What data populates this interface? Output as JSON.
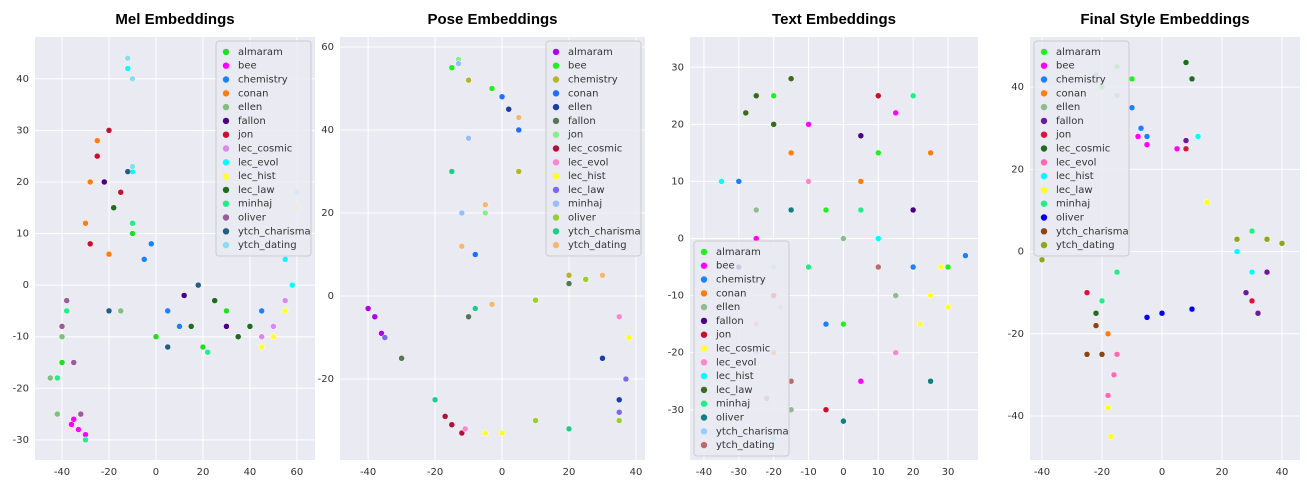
{
  "chart_data": [
    {
      "type": "scatter",
      "title": "Mel Embeddings",
      "xlim": [
        -51.5,
        67.7
      ],
      "ylim": [
        -33.9,
        48.1
      ],
      "xticks": [
        -40,
        -20,
        0,
        20,
        40,
        60
      ],
      "yticks": [
        -30,
        -20,
        -10,
        0,
        10,
        20,
        30,
        40
      ],
      "grid": true,
      "legend": "upper right",
      "series": [
        {
          "name": "almaram",
          "color": "#22dd22",
          "x": [
            -10,
            0,
            20,
            -40,
            30
          ],
          "y": [
            10,
            -10,
            -12,
            -15,
            -5
          ]
        },
        {
          "name": "bee",
          "color": "#ff00ff",
          "x": [
            -33,
            -30,
            -36,
            -35
          ],
          "y": [
            -28,
            -29,
            -27,
            -26
          ]
        },
        {
          "name": "chemistry",
          "color": "#1e7fff",
          "x": [
            -5,
            5,
            10,
            -2,
            45
          ],
          "y": [
            5,
            -5,
            -8,
            8,
            -5
          ]
        },
        {
          "name": "conan",
          "color": "#ff7f0e",
          "x": [
            -30,
            -20,
            -28,
            -25
          ],
          "y": [
            12,
            6,
            20,
            28
          ]
        },
        {
          "name": "ellen",
          "color": "#7fbf7f",
          "x": [
            -45,
            -40,
            -42,
            -15
          ],
          "y": [
            -18,
            -10,
            -25,
            -5
          ]
        },
        {
          "name": "fallon",
          "color": "#4b0082",
          "x": [
            -22,
            -18,
            12,
            30
          ],
          "y": [
            20,
            15,
            -2,
            -8
          ]
        },
        {
          "name": "jon",
          "color": "#c8102e",
          "x": [
            -25,
            -20,
            -15,
            -28
          ],
          "y": [
            25,
            30,
            18,
            8
          ]
        },
        {
          "name": "lec_cosmic",
          "color": "#dd88ee",
          "x": [
            50,
            55,
            45
          ],
          "y": [
            -8,
            -3,
            -10
          ]
        },
        {
          "name": "lec_evol",
          "color": "#00ffff",
          "x": [
            55,
            58,
            -12,
            -10
          ],
          "y": [
            5,
            0,
            42,
            22
          ]
        },
        {
          "name": "lec_hist",
          "color": "#ffff33",
          "x": [
            55,
            60,
            50,
            45
          ],
          "y": [
            -5,
            15,
            -10,
            -12
          ]
        },
        {
          "name": "lec_law",
          "color": "#1f6b1f",
          "x": [
            25,
            35,
            40,
            15,
            -18
          ],
          "y": [
            -3,
            -10,
            -8,
            -8,
            15
          ]
        },
        {
          "name": "minhaj",
          "color": "#22ee88",
          "x": [
            -42,
            -38,
            -30,
            -10,
            22
          ],
          "y": [
            -18,
            -5,
            -30,
            12,
            -13
          ]
        },
        {
          "name": "oliver",
          "color": "#9a5c9a",
          "x": [
            -40,
            -35,
            -32,
            -38
          ],
          "y": [
            -8,
            -15,
            -25,
            -3
          ]
        },
        {
          "name": "ytch_charisma",
          "color": "#1f5f7f",
          "x": [
            -20,
            5,
            18,
            -12
          ],
          "y": [
            -5,
            -12,
            0,
            22
          ]
        },
        {
          "name": "ytch_dating",
          "color": "#88ddee",
          "x": [
            -12,
            -10,
            -10,
            60
          ],
          "y": [
            44,
            40,
            23,
            18
          ]
        }
      ]
    },
    {
      "type": "scatter",
      "title": "Pose Embeddings",
      "xlim": [
        -48.4,
        42.7
      ],
      "ylim": [
        -39.5,
        62.4
      ],
      "xticks": [
        -40,
        -20,
        0,
        20,
        40
      ],
      "yticks": [
        -20,
        0,
        20,
        40,
        60
      ],
      "grid": true,
      "legend": "upper right",
      "series": [
        {
          "name": "almaram",
          "color": "#aa00ee",
          "x": [
            -38,
            -40,
            -36
          ],
          "y": [
            -5,
            -3,
            -9
          ]
        },
        {
          "name": "bee",
          "color": "#22ee22",
          "x": [
            -15,
            -10,
            -3
          ],
          "y": [
            55,
            52,
            50
          ]
        },
        {
          "name": "chemistry",
          "color": "#b5b52a",
          "x": [
            -10,
            5,
            20
          ],
          "y": [
            52,
            30,
            5
          ]
        },
        {
          "name": "conan",
          "color": "#1e6fff",
          "x": [
            0,
            5,
            -8
          ],
          "y": [
            48,
            40,
            10
          ]
        },
        {
          "name": "ellen",
          "color": "#1a3fa0",
          "x": [
            2,
            30,
            35
          ],
          "y": [
            45,
            -15,
            -25
          ]
        },
        {
          "name": "fallon",
          "color": "#557755",
          "x": [
            -30,
            -10,
            20
          ],
          "y": [
            -15,
            -5,
            3
          ]
        },
        {
          "name": "jon",
          "color": "#88ee88",
          "x": [
            -13,
            -5,
            10
          ],
          "y": [
            57,
            20,
            -1
          ]
        },
        {
          "name": "lec_cosmic",
          "color": "#b0103a",
          "x": [
            -15,
            -12,
            -17
          ],
          "y": [
            -31,
            -33,
            -29
          ]
        },
        {
          "name": "lec_evol",
          "color": "#ff88cc",
          "x": [
            -11,
            35
          ],
          "y": [
            -32,
            -5
          ]
        },
        {
          "name": "lec_hist",
          "color": "#ffff22",
          "x": [
            -5,
            0,
            38
          ],
          "y": [
            -33,
            -33,
            -10
          ]
        },
        {
          "name": "lec_law",
          "color": "#7b68ee",
          "x": [
            37,
            35,
            -35
          ],
          "y": [
            -20,
            -28,
            -10
          ]
        },
        {
          "name": "minhaj",
          "color": "#99bbff",
          "x": [
            -13,
            -10,
            -12
          ],
          "y": [
            56,
            38,
            20
          ]
        },
        {
          "name": "oliver",
          "color": "#9acd32",
          "x": [
            10,
            25,
            35,
            10
          ],
          "y": [
            -1,
            4,
            -30,
            -30
          ]
        },
        {
          "name": "ytch_charisma",
          "color": "#22cc88",
          "x": [
            -20,
            -8,
            -15,
            20
          ],
          "y": [
            -25,
            -3,
            30,
            -32
          ]
        },
        {
          "name": "ytch_dating",
          "color": "#f4b870",
          "x": [
            5,
            -5,
            -12,
            -3,
            30
          ],
          "y": [
            43,
            22,
            12,
            -2,
            5
          ]
        }
      ]
    },
    {
      "type": "scatter",
      "title": "Text Embeddings",
      "xlim": [
        -44,
        38.6
      ],
      "ylim": [
        -38.8,
        35.3
      ],
      "xticks": [
        -40,
        -30,
        -20,
        -10,
        0,
        10,
        20,
        30
      ],
      "yticks": [
        -30,
        -20,
        -10,
        0,
        10,
        20,
        30
      ],
      "grid": true,
      "legend": "lower left",
      "series": [
        {
          "name": "almaram",
          "color": "#22ee22",
          "x": [
            -20,
            10,
            -5,
            30,
            0
          ],
          "y": [
            25,
            15,
            5,
            -5,
            -15
          ]
        },
        {
          "name": "bee",
          "color": "#ff00ff",
          "x": [
            -10,
            15,
            -25,
            5
          ],
          "y": [
            20,
            22,
            0,
            -25
          ]
        },
        {
          "name": "chemistry",
          "color": "#1e7fff",
          "x": [
            -5,
            20,
            35,
            -30
          ],
          "y": [
            -15,
            -5,
            -3,
            10
          ]
        },
        {
          "name": "conan",
          "color": "#ff7f0e",
          "x": [
            -15,
            5,
            -20,
            25
          ],
          "y": [
            15,
            10,
            -20,
            15
          ]
        },
        {
          "name": "ellen",
          "color": "#8fbc8f",
          "x": [
            -25,
            0,
            15,
            -15
          ],
          "y": [
            5,
            0,
            -10,
            -30
          ]
        },
        {
          "name": "fallon",
          "color": "#4b0082",
          "x": [
            -30,
            5,
            20
          ],
          "y": [
            -5,
            18,
            5
          ]
        },
        {
          "name": "jon",
          "color": "#c8102e",
          "x": [
            -20,
            10,
            -5
          ],
          "y": [
            -10,
            25,
            -30
          ]
        },
        {
          "name": "lec_cosmic",
          "color": "#ffff33",
          "x": [
            25,
            28,
            22,
            30
          ],
          "y": [
            -10,
            -5,
            -15,
            -12
          ]
        },
        {
          "name": "lec_evol",
          "color": "#ff88cc",
          "x": [
            -10,
            15,
            -25
          ],
          "y": [
            10,
            -20,
            -15
          ]
        },
        {
          "name": "lec_hist",
          "color": "#00ffff",
          "x": [
            -35,
            10,
            -20
          ],
          "y": [
            10,
            0,
            -35
          ]
        },
        {
          "name": "lec_law",
          "color": "#3a6b1a",
          "x": [
            -25,
            -20,
            -15,
            -28
          ],
          "y": [
            25,
            20,
            28,
            22
          ]
        },
        {
          "name": "minhaj",
          "color": "#22ee88",
          "x": [
            5,
            -10,
            20
          ],
          "y": [
            5,
            -5,
            25
          ]
        },
        {
          "name": "oliver",
          "color": "#107f7f",
          "x": [
            0,
            -15,
            25
          ],
          "y": [
            -32,
            5,
            -25
          ]
        },
        {
          "name": "ytch_charisma",
          "color": "#99ccff",
          "x": [
            -20,
            -18,
            -25
          ],
          "y": [
            -5,
            -12,
            -20
          ]
        },
        {
          "name": "ytch_dating",
          "color": "#bc6a6a",
          "x": [
            -15,
            10,
            -22
          ],
          "y": [
            -25,
            -5,
            -28
          ]
        }
      ]
    },
    {
      "type": "scatter",
      "title": "Final Style Embeddings",
      "xlim": [
        -44,
        46
      ],
      "ylim": [
        -50.7,
        52.2
      ],
      "xticks": [
        -40,
        -20,
        0,
        20,
        40
      ],
      "yticks": [
        -40,
        -20,
        0,
        20,
        40
      ],
      "grid": true,
      "legend": "upper left",
      "series": [
        {
          "name": "almaram",
          "color": "#22ee22",
          "x": [
            -15,
            -20,
            -10
          ],
          "y": [
            45,
            40,
            42
          ]
        },
        {
          "name": "bee",
          "color": "#ff00ff",
          "x": [
            -8,
            -5,
            5
          ],
          "y": [
            28,
            26,
            25
          ]
        },
        {
          "name": "chemistry",
          "color": "#1e7fff",
          "x": [
            -10,
            -7,
            -5
          ],
          "y": [
            35,
            30,
            28
          ]
        },
        {
          "name": "conan",
          "color": "#ff7f0e",
          "x": [
            -18,
            -15
          ],
          "y": [
            -20,
            -25
          ]
        },
        {
          "name": "ellen",
          "color": "#8fbc8f",
          "x": [
            -22,
            -15
          ],
          "y": [
            43,
            38
          ]
        },
        {
          "name": "fallon",
          "color": "#6a1b9a",
          "x": [
            28,
            32,
            8,
            35
          ],
          "y": [
            -10,
            -15,
            27,
            -5
          ]
        },
        {
          "name": "jon",
          "color": "#dc143c",
          "x": [
            8,
            -25,
            30
          ],
          "y": [
            25,
            -10,
            -12
          ]
        },
        {
          "name": "lec_cosmic",
          "color": "#1f6b1f",
          "x": [
            8,
            10,
            -22
          ],
          "y": [
            46,
            42,
            -15
          ]
        },
        {
          "name": "lec_evol",
          "color": "#ff69b4",
          "x": [
            -16,
            -15,
            -18
          ],
          "y": [
            -30,
            -25,
            -35
          ]
        },
        {
          "name": "lec_hist",
          "color": "#00ffff",
          "x": [
            12,
            30,
            25
          ],
          "y": [
            28,
            -5,
            0
          ]
        },
        {
          "name": "lec_law",
          "color": "#ffff22",
          "x": [
            -18,
            -17,
            15
          ],
          "y": [
            -38,
            -45,
            12
          ]
        },
        {
          "name": "minhaj",
          "color": "#22ee88",
          "x": [
            -15,
            -20,
            30
          ],
          "y": [
            -5,
            -12,
            5
          ]
        },
        {
          "name": "oliver",
          "color": "#0000ee",
          "x": [
            0,
            10,
            -5
          ],
          "y": [
            -15,
            -14,
            -16
          ]
        },
        {
          "name": "ytch_charisma",
          "color": "#8b4513",
          "x": [
            -25,
            -22,
            -20
          ],
          "y": [
            -25,
            -18,
            -25
          ]
        },
        {
          "name": "ytch_dating",
          "color": "#8fa51a",
          "x": [
            -40,
            35,
            25,
            40
          ],
          "y": [
            -2,
            3,
            3,
            2
          ]
        }
      ]
    }
  ]
}
